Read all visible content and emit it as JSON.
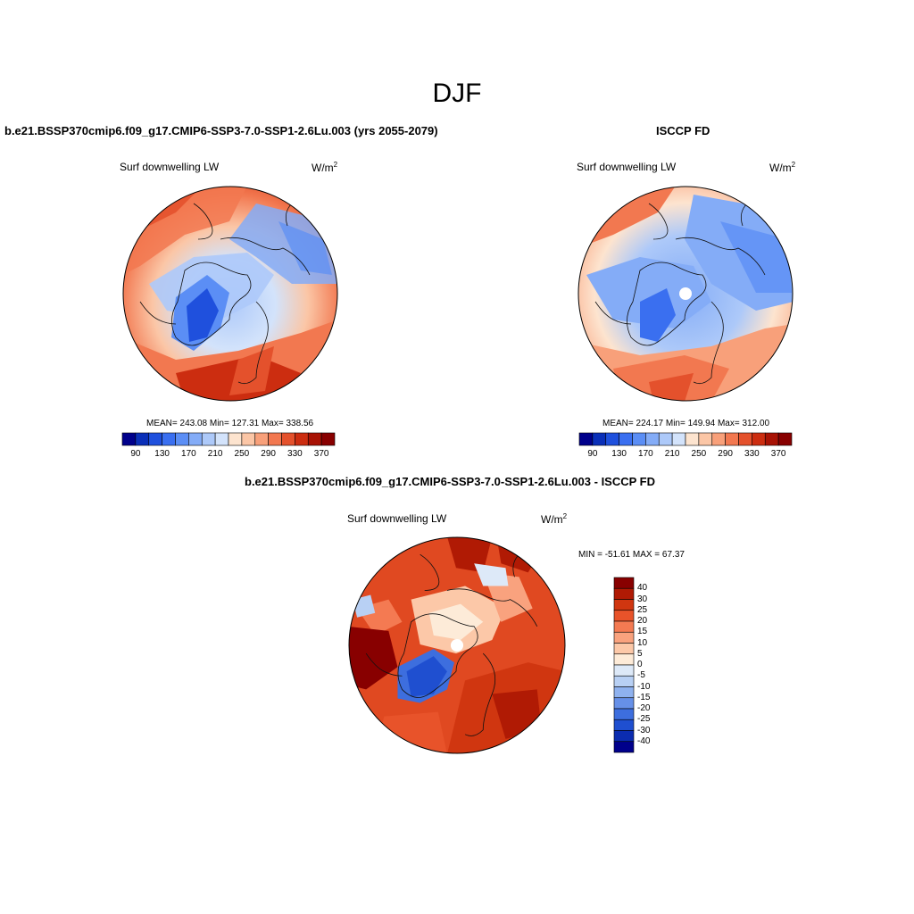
{
  "figure": {
    "season": "DJF"
  },
  "panels": {
    "model": {
      "title": "b.e21.BSSP370cmip6.f09_g17.CMIP6-SSP3-7.0-SSP1-2.6Lu.003 (yrs 2055-2079)",
      "variable": "Surf downwelling LW",
      "units_base": "W/m",
      "units_exp": "2",
      "stats": "MEAN= 243.08  Min= 127.31  Max= 338.56"
    },
    "obs": {
      "title": "ISCCP FD",
      "variable": "Surf downwelling LW",
      "units_base": "W/m",
      "units_exp": "2",
      "stats": "MEAN= 224.17  Min= 149.94  Max= 312.00"
    },
    "diff": {
      "title": "b.e21.BSSP370cmip6.f09_g17.CMIP6-SSP3-7.0-SSP1-2.6Lu.003 - ISCCP FD",
      "variable": "Surf downwelling LW",
      "units_base": "W/m",
      "units_exp": "2",
      "stats": "MIN = -51.61 MAX =  67.37"
    }
  },
  "colorbar_abs": {
    "colors": [
      "#00008b",
      "#0a2fb8",
      "#1f50dd",
      "#3a6ff0",
      "#5b8ef5",
      "#84acf7",
      "#adc9f9",
      "#d3e3fb",
      "#fde4cf",
      "#fbc6a6",
      "#f8a07a",
      "#f27850",
      "#e4512c",
      "#cc2d10",
      "#a81204",
      "#880000"
    ],
    "ticks": [
      "90",
      "130",
      "170",
      "210",
      "250",
      "290",
      "330",
      "370"
    ]
  },
  "colorbar_diff": {
    "colors": [
      "#880000",
      "#b01a04",
      "#d03610",
      "#e8532a",
      "#f47a52",
      "#f9a27e",
      "#fcc8a8",
      "#fdebd8",
      "#dde9f8",
      "#b8d0f4",
      "#8fb2ef",
      "#6690e8",
      "#3d6ede",
      "#1f4fd0",
      "#0b2cb0",
      "#00008b"
    ],
    "ticks": [
      "40",
      "30",
      "25",
      "20",
      "15",
      "10",
      "5",
      "0",
      "-5",
      "-10",
      "-15",
      "-20",
      "-25",
      "-30",
      "-40"
    ]
  },
  "map_colors": {
    "pole_hole": "#ffffff",
    "coastline": "#111111",
    "outline": "#000000"
  }
}
